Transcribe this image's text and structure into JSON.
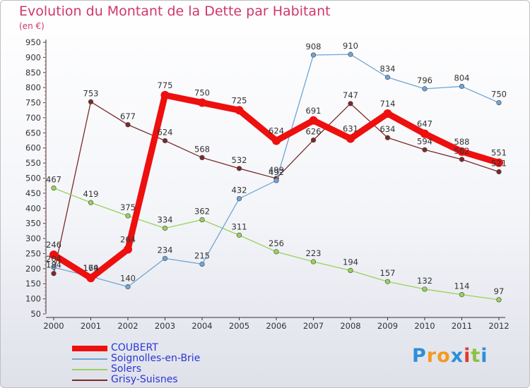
{
  "title": "Evolution du Montant de la Dette par Habitant",
  "subtitle": "(en €)",
  "logo": {
    "letters": [
      "P",
      "r",
      "o",
      "x",
      "i",
      "t",
      "i"
    ],
    "colors": [
      "#2e8fd6",
      "#f39a1f",
      "#f39a1f",
      "#2e8fd6",
      "#e23a2e",
      "#8bc23f",
      "#2e8fd6"
    ]
  },
  "chart_data": {
    "type": "line",
    "x": [
      "2000",
      "2001",
      "2002",
      "2003",
      "2004",
      "2005",
      "2006",
      "2007",
      "2008",
      "2009",
      "2010",
      "2011",
      "2012"
    ],
    "ylim": [
      50,
      950
    ],
    "yticks": [
      50,
      100,
      150,
      200,
      250,
      300,
      350,
      400,
      450,
      500,
      550,
      600,
      650,
      700,
      750,
      800,
      850,
      900,
      950
    ],
    "grid": false,
    "legend_position": "bottom-left",
    "series": [
      {
        "name": "Grisy-Suisnes",
        "color": "#7b2a2a",
        "values": [
          184,
          753,
          677,
          624,
          568,
          532,
          499,
          626,
          747,
          634,
          594,
          562,
          521
        ],
        "labels": [
          "184",
          "753",
          "677",
          "624",
          "568",
          "532",
          "499",
          "626",
          "747",
          "634",
          "594",
          "562",
          "521"
        ]
      },
      {
        "name": "Solers",
        "color": "#9ad15a",
        "values": [
          467,
          419,
          375,
          334,
          362,
          311,
          256,
          223,
          194,
          157,
          132,
          114,
          97
        ],
        "labels": [
          "467",
          "419",
          "375",
          "334",
          "362",
          "311",
          "256",
          "223",
          "194",
          "157",
          "132",
          "114",
          "97"
        ]
      },
      {
        "name": "Soignolles-en-Brie",
        "color": "#6fa5d6",
        "values": [
          204,
          174,
          140,
          234,
          215,
          432,
          492,
          908,
          910,
          834,
          796,
          804,
          750
        ],
        "labels": [
          "204",
          "174",
          "140",
          "234",
          "215",
          "432",
          "492",
          "908",
          "910",
          "834",
          "796",
          "804",
          "750"
        ]
      },
      {
        "name": "COUBERT",
        "color": "#ee0f0f",
        "values": [
          246,
          169,
          264,
          775,
          750,
          725,
          624,
          691,
          631,
          714,
          647,
          588,
          551
        ],
        "labels": [
          "246",
          "169",
          "264",
          "775",
          "750",
          "725",
          "624",
          "691",
          "631",
          "714",
          "647",
          "588",
          "551"
        ]
      }
    ]
  }
}
